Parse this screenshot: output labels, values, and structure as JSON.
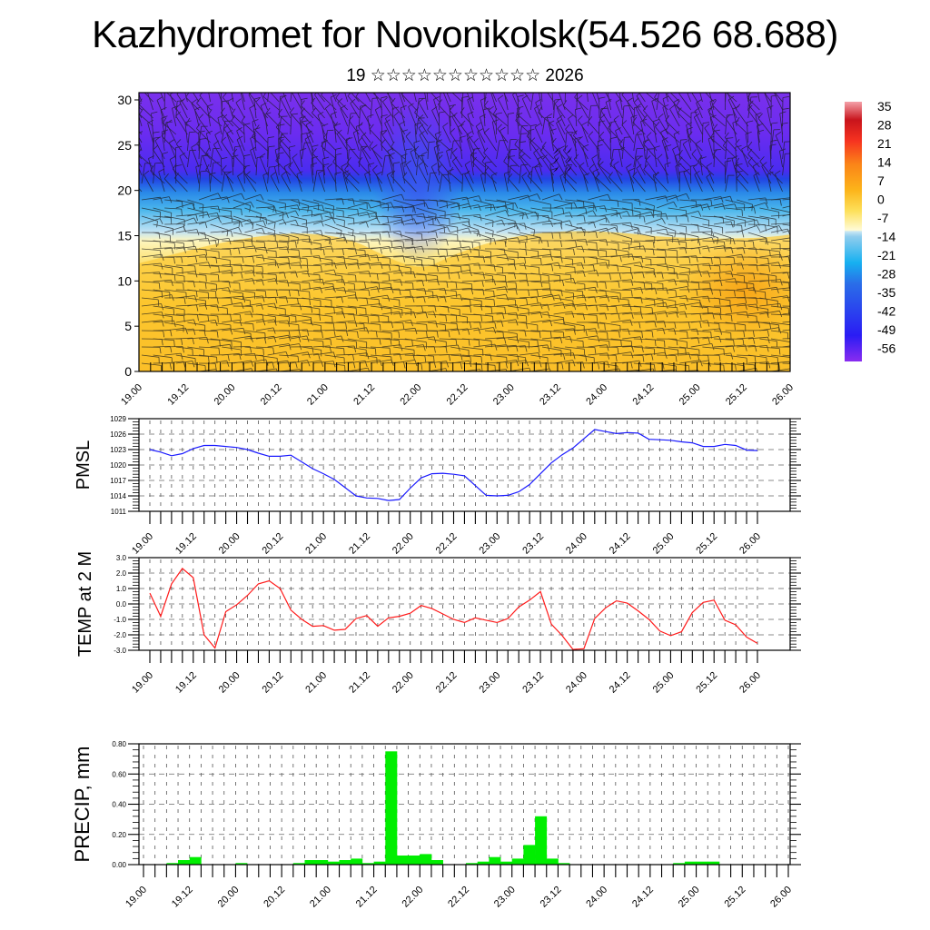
{
  "header": {
    "title": "Kazhydromet for Novonikolsk(54.526 68.688)",
    "subtitle": "19 ☆☆☆☆☆☆☆☆☆☆☆ 2026"
  },
  "colors": {
    "pmsl_line": "#1a1aff",
    "temp_line": "#ff1a1a",
    "precip_bar": "#00ee00",
    "axis": "#000000"
  },
  "chart_data": [
    {
      "type": "heatmap",
      "name": "cross-section",
      "title": "",
      "ylabel": "",
      "ylim": [
        0,
        30
      ],
      "yticks": [
        "0",
        "5",
        "10",
        "15",
        "20",
        "25",
        "30"
      ],
      "xticks": [
        "19.00",
        "19.12",
        "20.00",
        "20.12",
        "21.00",
        "21.12",
        "22.00",
        "22.12",
        "23.00",
        "23.12",
        "24.00",
        "24.12",
        "25.00",
        "25.12",
        "26.00"
      ],
      "colorbar": {
        "labels": [
          "35",
          "28",
          "21",
          "14",
          "7",
          "0",
          "-7",
          "-14",
          "-21",
          "-28",
          "-35",
          "-42",
          "-49",
          "-56"
        ],
        "range": [
          -60,
          38
        ]
      },
      "overlay": "wind barbs"
    },
    {
      "type": "line",
      "name": "pmsl",
      "ylabel": "PMSL",
      "ylim": [
        1011,
        1029
      ],
      "yticks": [
        "1011",
        "1014",
        "1017",
        "1020",
        "1023",
        "1026",
        "1029"
      ],
      "xticks": [
        "19.00",
        "19.12",
        "20.00",
        "20.12",
        "21.00",
        "21.12",
        "22.00",
        "22.12",
        "23.00",
        "23.12",
        "24.00",
        "24.12",
        "25.00",
        "25.12",
        "26.00"
      ],
      "grid": true,
      "x_hours": [
        0,
        3,
        6,
        9,
        12,
        15,
        18,
        21,
        24,
        27,
        30,
        33,
        36,
        39,
        42,
        45,
        48,
        51,
        54,
        57,
        60,
        63,
        66,
        69,
        72,
        75,
        78,
        81,
        84,
        87,
        90,
        93,
        96,
        99,
        102,
        105,
        108,
        111,
        114,
        117,
        120,
        123,
        126,
        129,
        132,
        135,
        138,
        141,
        144,
        147,
        150,
        153,
        156,
        159,
        162,
        165,
        168
      ],
      "values": [
        1023.0,
        1022.5,
        1021.8,
        1022.2,
        1023.2,
        1023.8,
        1023.8,
        1023.6,
        1023.4,
        1023.0,
        1022.3,
        1021.7,
        1021.7,
        1021.9,
        1020.6,
        1019.3,
        1018.3,
        1017.2,
        1015.6,
        1014.0,
        1013.6,
        1013.5,
        1013.1,
        1013.3,
        1015.5,
        1017.5,
        1018.3,
        1018.4,
        1018.2,
        1017.9,
        1016.0,
        1014.1,
        1014.0,
        1014.1,
        1014.8,
        1016.2,
        1018.3,
        1020.4,
        1022.0,
        1023.3,
        1025.1,
        1026.9,
        1026.5,
        1026.1,
        1026.3,
        1026.2,
        1025.0,
        1024.9,
        1024.8,
        1024.5,
        1024.3,
        1023.6,
        1023.6,
        1024.0,
        1023.8,
        1022.9,
        1022.8
      ]
    },
    {
      "type": "line",
      "name": "temp",
      "ylabel": "TEMP at 2 M",
      "ylim": [
        -3.0,
        3.0
      ],
      "yticks": [
        "-3.0",
        "-2.0",
        "-1.0",
        "0.0",
        "1.0",
        "2.0",
        "3.0"
      ],
      "xticks": [
        "19.00",
        "19.12",
        "20.00",
        "20.12",
        "21.00",
        "21.12",
        "22.00",
        "22.12",
        "23.00",
        "23.12",
        "24.00",
        "24.12",
        "25.00",
        "25.12",
        "26.00"
      ],
      "grid": true,
      "x_hours": [
        0,
        3,
        6,
        9,
        12,
        15,
        18,
        21,
        24,
        27,
        30,
        33,
        36,
        39,
        42,
        45,
        48,
        51,
        54,
        57,
        60,
        63,
        66,
        69,
        72,
        75,
        78,
        81,
        84,
        87,
        90,
        93,
        96,
        99,
        102,
        105,
        108,
        111,
        114,
        117,
        120,
        123,
        126,
        129,
        132,
        135,
        138,
        141,
        144,
        147,
        150,
        153,
        156,
        159,
        162,
        165,
        168
      ],
      "values": [
        0.7,
        -0.8,
        1.3,
        2.3,
        1.7,
        -2.0,
        -2.85,
        -0.5,
        -0.05,
        0.55,
        1.3,
        1.5,
        1.0,
        -0.4,
        -1.0,
        -1.45,
        -1.4,
        -1.7,
        -1.65,
        -0.95,
        -0.75,
        -1.45,
        -0.9,
        -0.8,
        -0.6,
        -0.1,
        -0.3,
        -0.65,
        -1.0,
        -1.2,
        -0.9,
        -1.05,
        -1.2,
        -0.95,
        -0.2,
        0.25,
        0.8,
        -1.3,
        -2.05,
        -2.95,
        -2.9,
        -0.95,
        -0.25,
        0.2,
        0.05,
        -0.45,
        -1.0,
        -1.75,
        -2.05,
        -1.8,
        -0.55,
        0.1,
        0.25,
        -1.05,
        -1.35,
        -2.15,
        -2.55
      ]
    },
    {
      "type": "bar",
      "name": "precip",
      "ylabel": "PRECIP, mm",
      "ylim": [
        0.0,
        0.8
      ],
      "yticks": [
        "0.00",
        "0.20",
        "0.40",
        "0.60",
        "0.80"
      ],
      "xticks": [
        "19.00",
        "19.12",
        "20.00",
        "20.12",
        "21.00",
        "21.12",
        "22.00",
        "22.12",
        "23.00",
        "23.12",
        "24.00",
        "24.12",
        "25.00",
        "25.12",
        "26.00"
      ],
      "grid": true,
      "x_hours": [
        0,
        3,
        6,
        9,
        12,
        15,
        18,
        21,
        24,
        27,
        30,
        33,
        36,
        39,
        42,
        45,
        48,
        51,
        54,
        57,
        60,
        63,
        66,
        69,
        72,
        75,
        78,
        81,
        84,
        87,
        90,
        93,
        96,
        99,
        102,
        105,
        108,
        111,
        114,
        117,
        120,
        123,
        126,
        129,
        132,
        135,
        138,
        141,
        144,
        147,
        150,
        153,
        156,
        159,
        162,
        165
      ],
      "values": [
        0,
        0,
        0.01,
        0.03,
        0.05,
        0,
        0,
        0,
        0.01,
        0,
        0,
        0,
        0,
        0.01,
        0.03,
        0.03,
        0.02,
        0.03,
        0.04,
        0.01,
        0.02,
        0.75,
        0.06,
        0.06,
        0.07,
        0.03,
        0,
        0,
        0.01,
        0.02,
        0.05,
        0.02,
        0.04,
        0.13,
        0.32,
        0.04,
        0.01,
        0,
        0,
        0,
        0,
        0,
        0,
        0,
        0,
        0,
        0.01,
        0.02,
        0.02,
        0.02,
        0,
        0,
        0,
        0,
        0,
        0
      ]
    }
  ]
}
